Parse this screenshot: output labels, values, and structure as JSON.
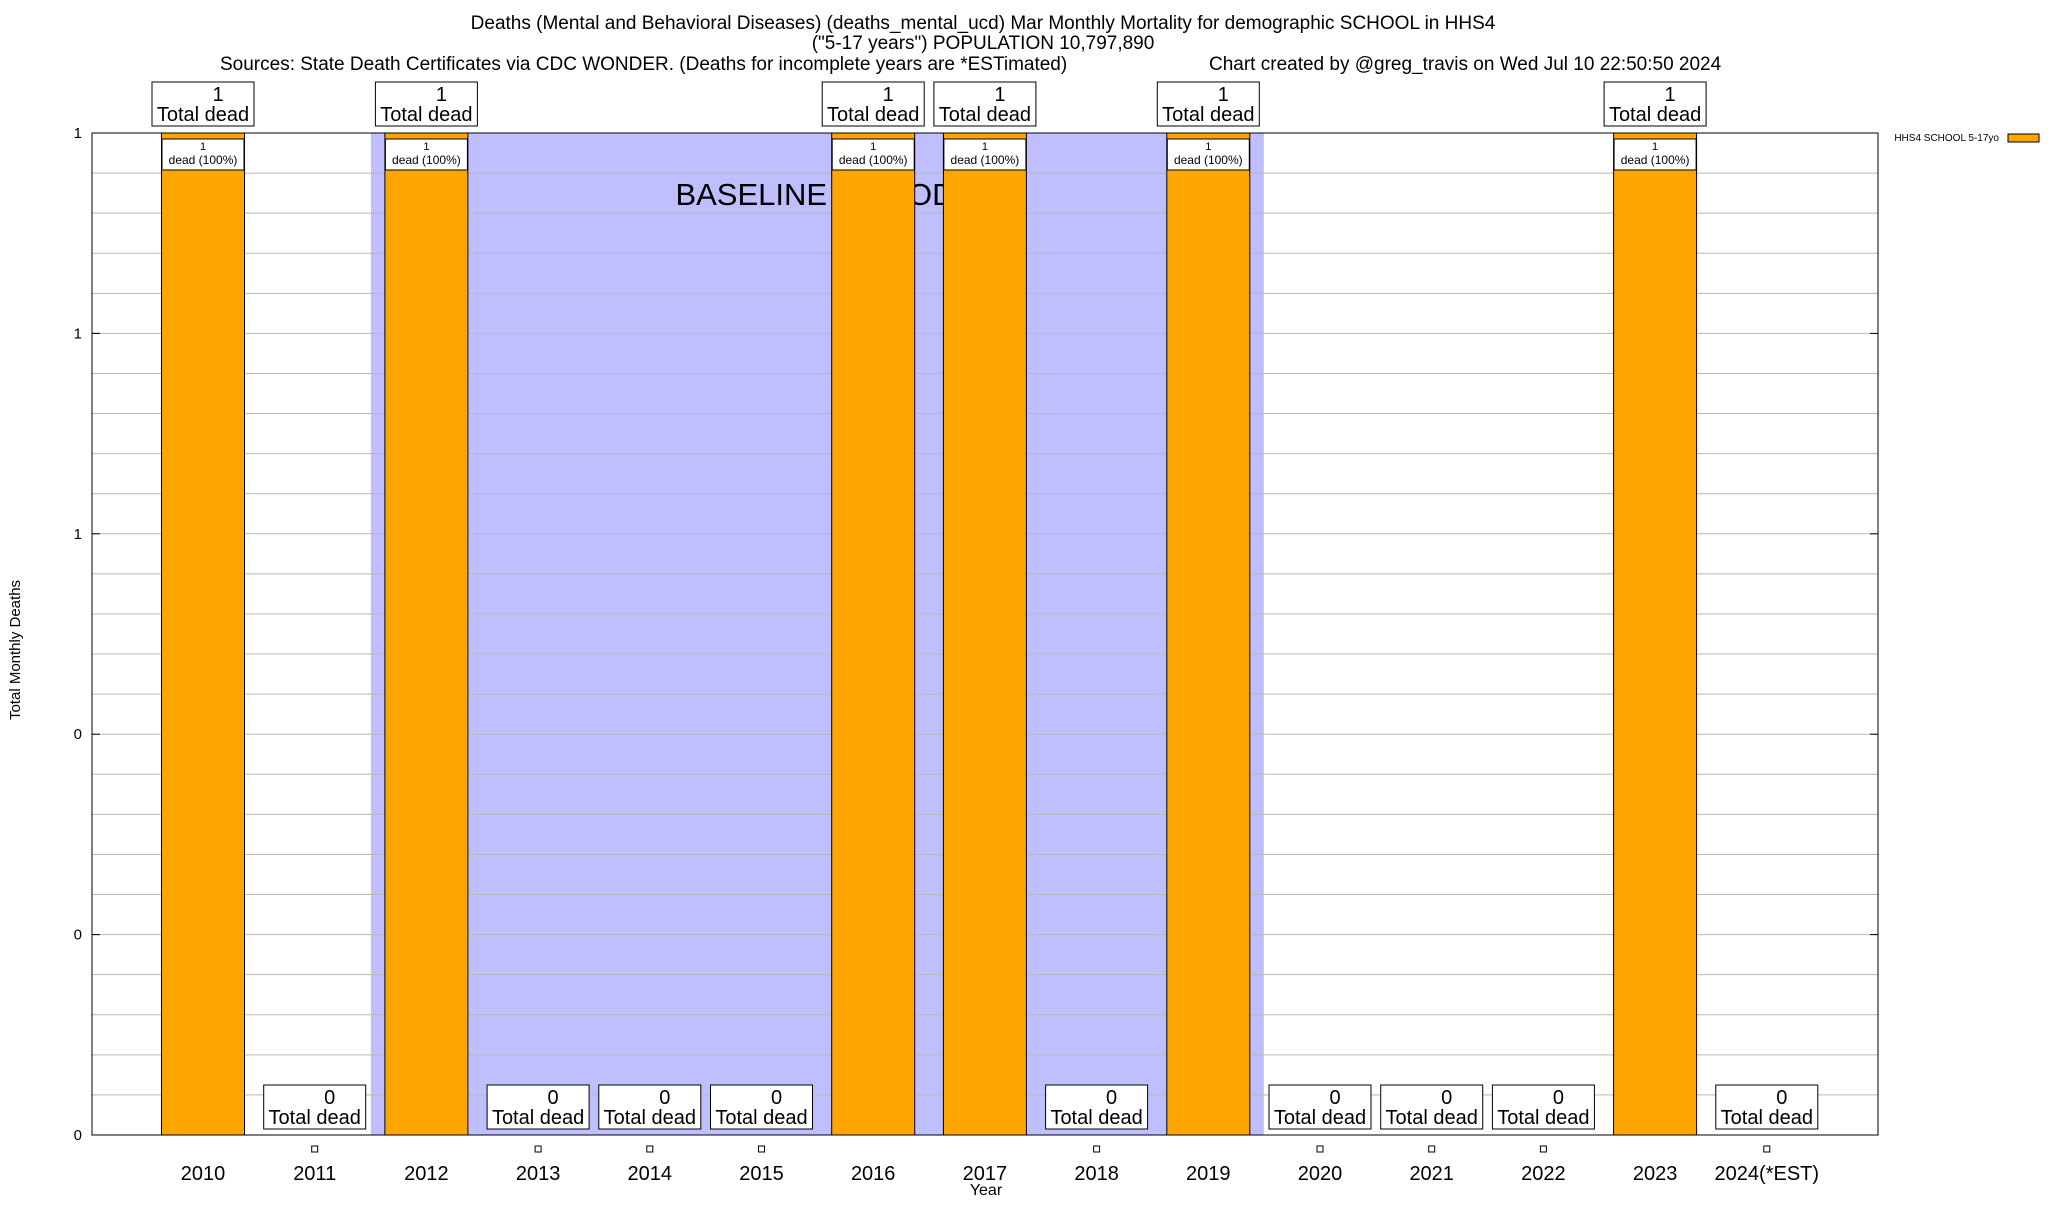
{
  "chart_data": {
    "type": "bar",
    "title_lines": [
      "Deaths (Mental and Behavioral Diseases) (deaths_mental_ucd) Mar Monthly Mortality for demographic SCHOOL in HHS4",
      "(\"5-17 years\") POPULATION 10,797,890",
      "Sources: State Death Certificates via CDC WONDER. (Deaths for incomplete years are *ESTimated)"
    ],
    "credit": "Chart created by @greg_travis on Wed Jul 10 22:50:50 2024",
    "xlabel": "Year",
    "ylabel": "Total Monthly Deaths",
    "ylim": [
      0,
      1
    ],
    "ytick_labels": [
      "0",
      "0",
      "0",
      "1",
      "1",
      "1"
    ],
    "grid": true,
    "legend_position": "top-right",
    "categories": [
      "2010",
      "2011",
      "2012",
      "2013",
      "2014",
      "2015",
      "2016",
      "2017",
      "2018",
      "2019",
      "2020",
      "2021",
      "2022",
      "2023",
      "2024(*EST)"
    ],
    "series": [
      {
        "name": "HHS4 SCHOOL 5-17yo",
        "color": "#FFA500",
        "values": [
          1,
          0,
          1,
          0,
          0,
          0,
          1,
          1,
          0,
          1,
          0,
          0,
          0,
          1,
          0
        ]
      }
    ],
    "total_label_suffix": "Total dead",
    "inner_label_suffix": "dead (100%)",
    "baseline": {
      "label": "BASELINE PERIOD",
      "start": "2012",
      "end": "2019",
      "color": "#BFBFFF"
    }
  }
}
